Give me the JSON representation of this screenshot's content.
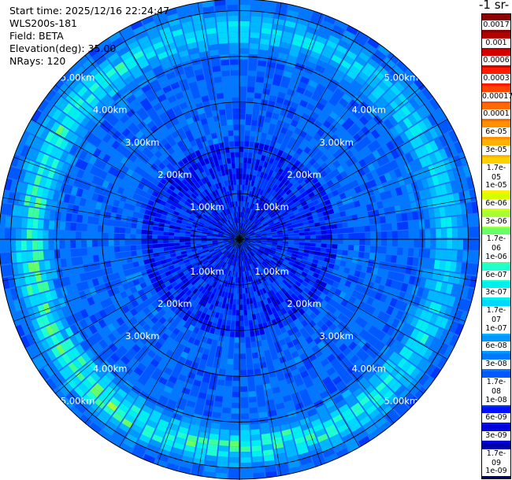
{
  "header": {
    "start_time": "Start time: 2025/12/16 22:24:47",
    "instrument": "WLS200s-181",
    "field": "Field: BETA",
    "elevation": "Elevation(deg): 35.00",
    "nrays": "NRays: 120",
    "unit": "-1 sr-"
  },
  "chart_data": {
    "type": "heatmap",
    "projection": "polar-ppi",
    "field": "BETA",
    "elevation_deg": 35.0,
    "n_rays": 120,
    "max_range_km": 5.25,
    "range_rings_km": [
      1,
      2,
      3,
      4,
      5
    ],
    "ring_labels": [
      "1.00km",
      "2.00km",
      "3.00km",
      "4.00km",
      "5.00km"
    ],
    "colorbar_labels": [
      "0.0017",
      "0.001",
      "0.0006",
      "0.0003",
      "0.00017",
      "0.0001",
      "6e-05",
      "3e-05",
      "1.7e-05",
      "1e-05",
      "6e-06",
      "3e-06",
      "1.7e-06",
      "1e-06",
      "6e-07",
      "3e-07",
      "1.7e-07",
      "1e-07",
      "6e-08",
      "3e-08",
      "1.7e-08",
      "1e-08",
      "6e-09",
      "3e-09",
      "1.7e-09",
      "1e-09"
    ],
    "colorbar_colors": [
      "#8b0000",
      "#b00000",
      "#d40000",
      "#ff1a00",
      "#ff4400",
      "#ff6a00",
      "#ff9000",
      "#ffb000",
      "#ffd000",
      "#fff000",
      "#d8ff00",
      "#a8ff33",
      "#66ff66",
      "#3dff9a",
      "#1fffd0",
      "#00f0f0",
      "#00d8ff",
      "#00b8ff",
      "#0098ff",
      "#0078ff",
      "#0058ff",
      "#0038ff",
      "#0010ff",
      "#0000dd",
      "#0000aa",
      "#00007a"
    ]
  }
}
